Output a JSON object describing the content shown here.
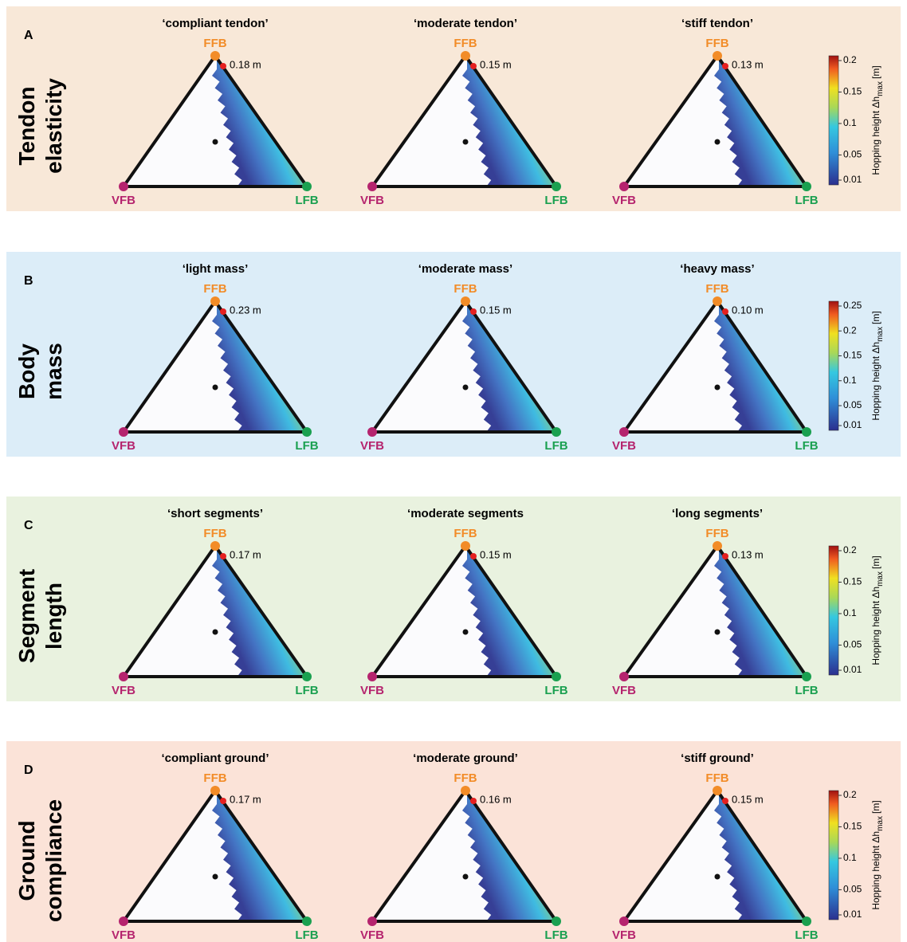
{
  "vertices": {
    "top": "FFB",
    "left": "VFB",
    "right": "LFB"
  },
  "colorbar_label": {
    "main": "Hopping height Δh",
    "sub": "max",
    "unit": "[m]"
  },
  "panels": [
    {
      "letter": "A",
      "label_lines": [
        "Tendon",
        "elasticity"
      ],
      "subplots": [
        {
          "title": "‘compliant tendon’",
          "peak": "0.18 m"
        },
        {
          "title": "‘moderate tendon’",
          "peak": "0.15 m"
        },
        {
          "title": "‘stiff tendon’",
          "peak": "0.13 m"
        }
      ],
      "colorbar_ticks": [
        0.2,
        0.15,
        0.1,
        0.05,
        0.01
      ]
    },
    {
      "letter": "B",
      "label_lines": [
        "Body",
        "mass"
      ],
      "subplots": [
        {
          "title": "‘light mass’",
          "peak": "0.23 m"
        },
        {
          "title": "‘moderate mass’",
          "peak": "0.15 m"
        },
        {
          "title": "‘heavy mass’",
          "peak": "0.10 m"
        }
      ],
      "colorbar_ticks": [
        0.25,
        0.2,
        0.15,
        0.1,
        0.05,
        0.01
      ]
    },
    {
      "letter": "C",
      "label_lines": [
        "Segment",
        "length"
      ],
      "subplots": [
        {
          "title": "‘short segments’",
          "peak": "0.17 m"
        },
        {
          "title": "‘moderate segments",
          "peak": "0.15 m"
        },
        {
          "title": "‘long segments’",
          "peak": "0.13 m"
        }
      ],
      "colorbar_ticks": [
        0.2,
        0.15,
        0.1,
        0.05,
        0.01
      ]
    },
    {
      "letter": "D",
      "label_lines": [
        "Ground",
        "compliance"
      ],
      "subplots": [
        {
          "title": "‘compliant ground’",
          "peak": "0.17 m"
        },
        {
          "title": "‘moderate ground’",
          "peak": "0.16 m"
        },
        {
          "title": "‘stiff ground’",
          "peak": "0.15 m"
        }
      ],
      "colorbar_ticks": [
        0.2,
        0.15,
        0.1,
        0.05,
        0.01
      ]
    }
  ]
}
